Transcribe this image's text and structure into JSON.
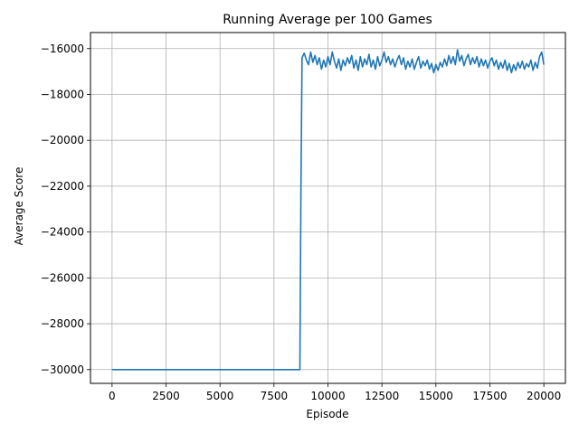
{
  "chart_data": {
    "type": "line",
    "title": "Running Average per 100 Games",
    "xlabel": "Episode",
    "ylabel": "Average Score",
    "xlim": [
      -1000,
      21000
    ],
    "ylim": [
      -30600,
      -15300
    ],
    "xticks": [
      0,
      2500,
      5000,
      7500,
      10000,
      12500,
      15000,
      17500,
      20000
    ],
    "yticks": [
      -30000,
      -28000,
      -26000,
      -24000,
      -22000,
      -20000,
      -18000,
      -16000
    ],
    "grid": true,
    "series": [
      {
        "color": "#1f77b4",
        "points": [
          [
            0,
            -30000
          ],
          [
            8700,
            -30000
          ],
          [
            8750,
            -22000
          ],
          [
            8800,
            -16400
          ],
          [
            8900,
            -16200
          ],
          [
            9000,
            -16500
          ],
          [
            9100,
            -16700
          ],
          [
            9200,
            -16150
          ],
          [
            9300,
            -16600
          ],
          [
            9400,
            -16300
          ],
          [
            9500,
            -16700
          ],
          [
            9600,
            -16400
          ],
          [
            9700,
            -16900
          ],
          [
            9800,
            -16500
          ],
          [
            9900,
            -16800
          ],
          [
            10000,
            -16350
          ],
          [
            10100,
            -16700
          ],
          [
            10200,
            -16150
          ],
          [
            10300,
            -16550
          ],
          [
            10400,
            -16850
          ],
          [
            10500,
            -16450
          ],
          [
            10600,
            -16950
          ],
          [
            10700,
            -16500
          ],
          [
            10800,
            -16750
          ],
          [
            10900,
            -16400
          ],
          [
            11000,
            -16650
          ],
          [
            11100,
            -16300
          ],
          [
            11200,
            -16850
          ],
          [
            11300,
            -16500
          ],
          [
            11400,
            -16950
          ],
          [
            11500,
            -16350
          ],
          [
            11600,
            -16800
          ],
          [
            11700,
            -16450
          ],
          [
            11800,
            -16700
          ],
          [
            11900,
            -16250
          ],
          [
            12000,
            -16800
          ],
          [
            12100,
            -16500
          ],
          [
            12200,
            -16900
          ],
          [
            12300,
            -16350
          ],
          [
            12400,
            -16750
          ],
          [
            12500,
            -16500
          ],
          [
            12600,
            -16150
          ],
          [
            12700,
            -16600
          ],
          [
            12800,
            -16350
          ],
          [
            12900,
            -16700
          ],
          [
            13000,
            -16450
          ],
          [
            13100,
            -16800
          ],
          [
            13200,
            -16500
          ],
          [
            13300,
            -16300
          ],
          [
            13400,
            -16700
          ],
          [
            13500,
            -16400
          ],
          [
            13600,
            -16900
          ],
          [
            13700,
            -16550
          ],
          [
            13800,
            -16800
          ],
          [
            13900,
            -16450
          ],
          [
            14000,
            -16900
          ],
          [
            14100,
            -16600
          ],
          [
            14200,
            -16350
          ],
          [
            14300,
            -16850
          ],
          [
            14400,
            -16550
          ],
          [
            14500,
            -16750
          ],
          [
            14600,
            -16500
          ],
          [
            14700,
            -16900
          ],
          [
            14800,
            -16650
          ],
          [
            14900,
            -17050
          ],
          [
            15000,
            -16700
          ],
          [
            15100,
            -16950
          ],
          [
            15200,
            -16600
          ],
          [
            15300,
            -16800
          ],
          [
            15400,
            -16450
          ],
          [
            15500,
            -16750
          ],
          [
            15600,
            -16300
          ],
          [
            15700,
            -16650
          ],
          [
            15800,
            -16350
          ],
          [
            15900,
            -16700
          ],
          [
            16000,
            -16050
          ],
          [
            16100,
            -16550
          ],
          [
            16200,
            -16300
          ],
          [
            16300,
            -16750
          ],
          [
            16400,
            -16450
          ],
          [
            16500,
            -16250
          ],
          [
            16600,
            -16700
          ],
          [
            16700,
            -16400
          ],
          [
            16800,
            -16650
          ],
          [
            16900,
            -16350
          ],
          [
            17000,
            -16800
          ],
          [
            17100,
            -16450
          ],
          [
            17200,
            -16750
          ],
          [
            17300,
            -16500
          ],
          [
            17400,
            -16850
          ],
          [
            17500,
            -16550
          ],
          [
            17600,
            -16400
          ],
          [
            17700,
            -16750
          ],
          [
            17800,
            -16500
          ],
          [
            17900,
            -16900
          ],
          [
            18000,
            -16600
          ],
          [
            18100,
            -16850
          ],
          [
            18200,
            -16500
          ],
          [
            18300,
            -16950
          ],
          [
            18400,
            -16650
          ],
          [
            18500,
            -17050
          ],
          [
            18600,
            -16700
          ],
          [
            18700,
            -16950
          ],
          [
            18800,
            -16600
          ],
          [
            18900,
            -16850
          ],
          [
            19000,
            -16550
          ],
          [
            19100,
            -16900
          ],
          [
            19200,
            -16650
          ],
          [
            19300,
            -16800
          ],
          [
            19400,
            -16500
          ],
          [
            19500,
            -16950
          ],
          [
            19600,
            -16600
          ],
          [
            19700,
            -16850
          ],
          [
            19800,
            -16350
          ],
          [
            19900,
            -16150
          ],
          [
            20000,
            -16700
          ]
        ]
      }
    ]
  }
}
